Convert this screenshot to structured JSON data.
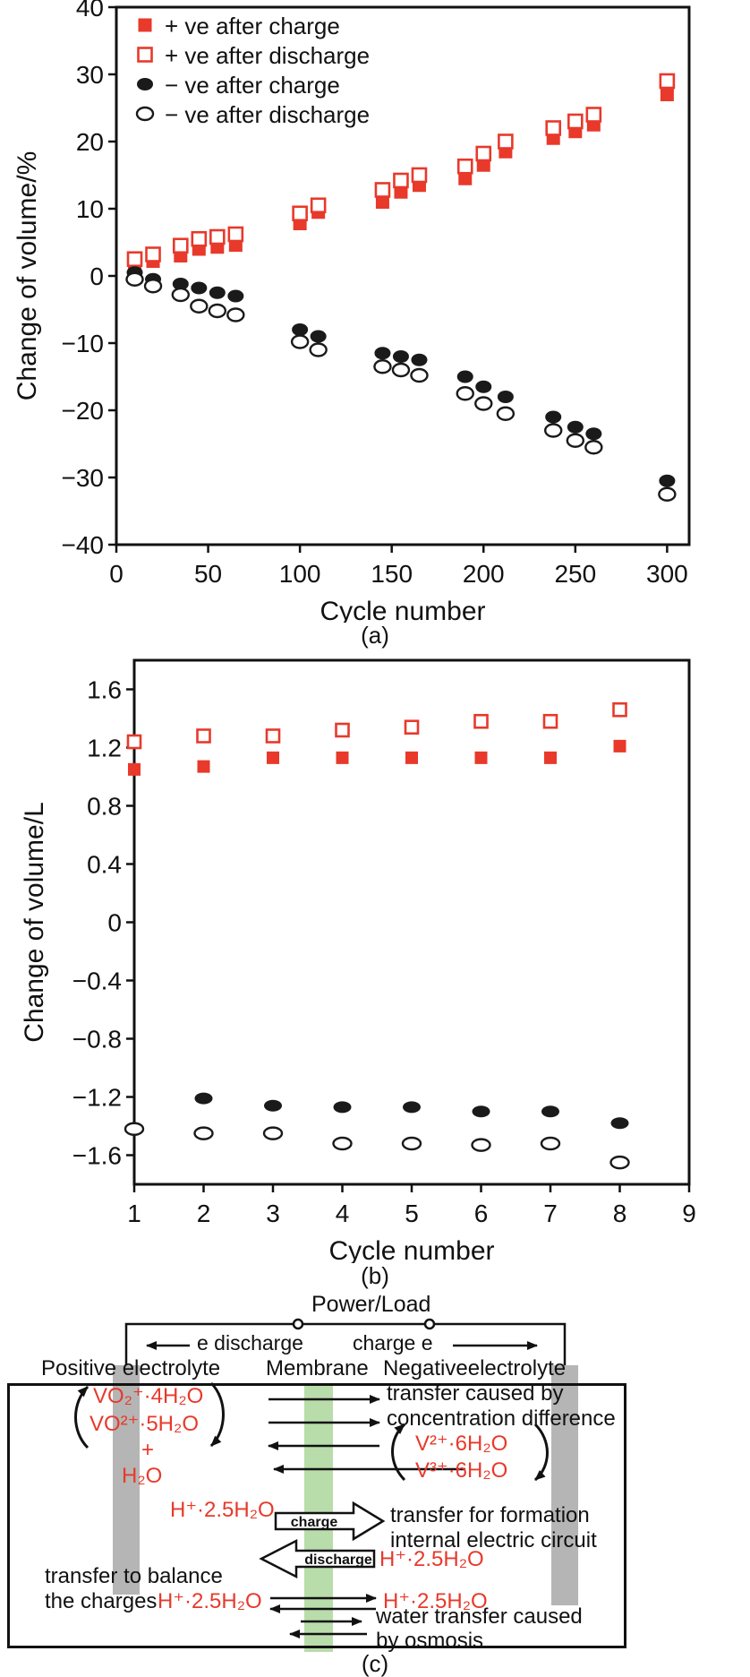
{
  "figure": {
    "panel_labels": {
      "a": "(a)",
      "b": "(b)",
      "c": "(c)"
    }
  },
  "colors": {
    "red": "#e8392b",
    "black": "#1a1a1a",
    "membrane_green": "#b9dcab",
    "electrode_gray": "#b5b5b5"
  },
  "chart_data": [
    {
      "id": "panel_a",
      "type": "scatter",
      "title": "",
      "xlabel": "Cycle number",
      "ylabel": "Change of volume/%",
      "xlim": [
        0,
        312
      ],
      "ylim": [
        -40,
        40
      ],
      "xticks": [
        0,
        50,
        100,
        150,
        200,
        250,
        300
      ],
      "yticks": [
        -40,
        -30,
        -20,
        -10,
        0,
        10,
        20,
        30,
        40
      ],
      "grid": false,
      "legend_position": "top-left",
      "series": [
        {
          "name": "+ ve after charge",
          "marker": "square-filled",
          "color": "#e8392b",
          "x": [
            10,
            20,
            35,
            45,
            55,
            65,
            100,
            110,
            145,
            155,
            165,
            190,
            200,
            212,
            238,
            250,
            260,
            300
          ],
          "y": [
            1.8,
            2.2,
            3.0,
            4.0,
            4.3,
            4.6,
            7.8,
            9.5,
            11.0,
            12.5,
            13.5,
            14.5,
            16.5,
            18.5,
            20.5,
            21.5,
            22.5,
            27.0
          ]
        },
        {
          "name": "+ ve after discharge",
          "marker": "square-open",
          "color": "#e8392b",
          "x": [
            10,
            20,
            35,
            45,
            55,
            65,
            100,
            110,
            145,
            155,
            165,
            190,
            200,
            212,
            238,
            250,
            260,
            300
          ],
          "y": [
            2.5,
            3.2,
            4.5,
            5.5,
            5.8,
            6.2,
            9.3,
            10.5,
            12.8,
            14.2,
            15.0,
            16.3,
            18.2,
            20.0,
            22.0,
            23.0,
            24.0,
            29.0
          ]
        },
        {
          "name": "− ve after charge",
          "marker": "circle-filled",
          "color": "#1a1a1a",
          "x": [
            10,
            20,
            35,
            45,
            55,
            65,
            100,
            110,
            145,
            155,
            165,
            190,
            200,
            212,
            238,
            250,
            260,
            300
          ],
          "y": [
            0.5,
            -0.5,
            -1.2,
            -1.8,
            -2.5,
            -3.0,
            -8.0,
            -9.0,
            -11.5,
            -12.0,
            -12.5,
            -15.0,
            -16.5,
            -18.0,
            -21.0,
            -22.5,
            -23.5,
            -30.5
          ]
        },
        {
          "name": "− ve after discharge",
          "marker": "circle-open",
          "color": "#1a1a1a",
          "x": [
            10,
            20,
            35,
            45,
            55,
            65,
            100,
            110,
            145,
            155,
            165,
            190,
            200,
            212,
            238,
            250,
            260,
            300
          ],
          "y": [
            -0.5,
            -1.5,
            -2.8,
            -4.5,
            -5.2,
            -5.8,
            -9.8,
            -11.0,
            -13.5,
            -14.0,
            -14.8,
            -17.5,
            -19.0,
            -20.5,
            -23.0,
            -24.5,
            -25.5,
            -32.5
          ]
        }
      ]
    },
    {
      "id": "panel_b",
      "type": "scatter",
      "title": "",
      "xlabel": "Cycle number",
      "ylabel": "Change of volume/L",
      "xlim": [
        1,
        9
      ],
      "ylim": [
        -1.8,
        1.8
      ],
      "xticks": [
        1,
        2,
        3,
        4,
        5,
        6,
        7,
        8,
        9
      ],
      "yticks": [
        -1.6,
        -1.2,
        -0.8,
        -0.4,
        0,
        0.4,
        0.8,
        1.2,
        1.6
      ],
      "grid": false,
      "legend_position": "none",
      "series": [
        {
          "name": "+ ve after charge",
          "marker": "square-filled",
          "color": "#e8392b",
          "x": [
            1,
            2,
            3,
            4,
            5,
            6,
            7,
            8
          ],
          "y": [
            1.05,
            1.07,
            1.13,
            1.13,
            1.13,
            1.13,
            1.13,
            1.21
          ]
        },
        {
          "name": "+ ve after discharge",
          "marker": "square-open",
          "color": "#e8392b",
          "x": [
            1,
            2,
            3,
            4,
            5,
            6,
            7,
            8
          ],
          "y": [
            1.24,
            1.28,
            1.28,
            1.32,
            1.34,
            1.38,
            1.38,
            1.46
          ]
        },
        {
          "name": "− ve after charge",
          "marker": "circle-filled",
          "color": "#1a1a1a",
          "x": [
            1,
            2,
            3,
            4,
            5,
            6,
            7,
            8
          ],
          "y": [
            null,
            -1.21,
            -1.26,
            -1.27,
            -1.27,
            -1.3,
            -1.3,
            -1.38
          ]
        },
        {
          "name": "− ve after discharge",
          "marker": "circle-open",
          "color": "#1a1a1a",
          "x": [
            1,
            2,
            3,
            4,
            5,
            6,
            7,
            8
          ],
          "y": [
            -1.42,
            -1.45,
            -1.45,
            -1.52,
            -1.52,
            -1.53,
            -1.52,
            -1.65
          ]
        }
      ]
    }
  ],
  "diagram": {
    "power_load": "Power/Load",
    "e_discharge": "e discharge",
    "charge_e": "charge e",
    "positive_electrolyte": "Positive electrolyte",
    "membrane": "Membrane",
    "negative_electrolyte": "Negativeelectrolyte",
    "species": {
      "vo2_4h2o": "VO₂⁺·4H₂O",
      "vo2p_5h2o": "VO²⁺·5H₂O",
      "plus": "+",
      "h2o": "H₂O",
      "h_25_left": "H⁺·2.5H₂O",
      "v2_6h2o": "V²⁺·6H₂O",
      "v3_6h2o": "V³⁺·6H₂O",
      "h_25_after_discharge": "H⁺·2.5H₂O",
      "h_25_balance_left": "H⁺·2.5H₂O",
      "h_25_balance_right": "H⁺·2.5H₂O"
    },
    "annotations": {
      "concentration_l1": "transfer caused by",
      "concentration_l2": "concentration difference",
      "formation_l1": "transfer for formation",
      "formation_l2": "internal electric circuit",
      "balance_l1": "transfer to balance",
      "balance_l2": "the charges",
      "osmosis_l1": "water transfer caused",
      "osmosis_l2": "by osmosis"
    },
    "arrow_labels": {
      "charge": "charge",
      "discharge": "discharge"
    }
  }
}
